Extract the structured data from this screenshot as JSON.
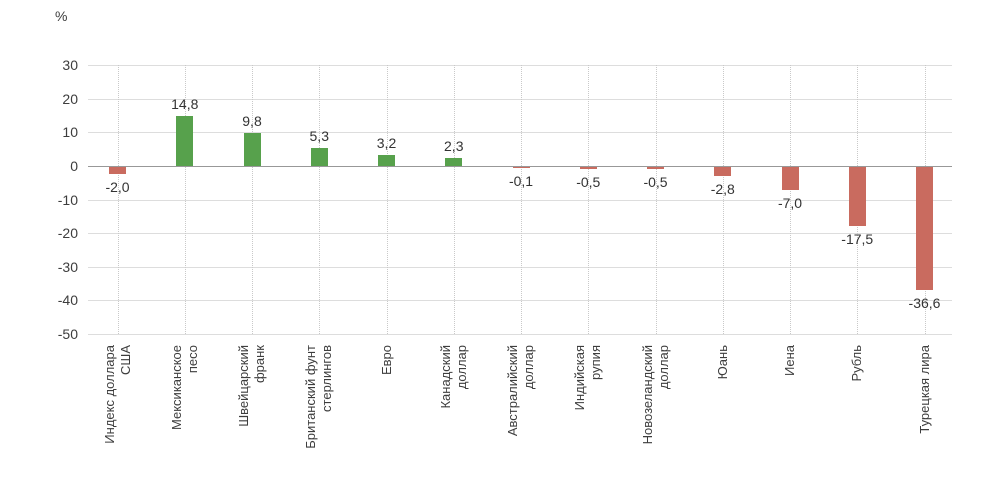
{
  "chart_data": {
    "type": "bar",
    "title": "",
    "unit_label": "%",
    "categories": [
      "Индекс доллара\nСША",
      "Мексиканское\nпесо",
      "Швейцарский\nфранк",
      "Британский фунт\nстерлингов",
      "Евро",
      "Канадский\nдоллар",
      "Австралийский\nдоллар",
      "Индийская\nрупия",
      "Новозеландский\nдоллар",
      "Юань",
      "Иена",
      "Рубль",
      "Турецкая лира"
    ],
    "values": [
      -2.0,
      14.8,
      9.8,
      5.3,
      3.2,
      2.3,
      -0.1,
      -0.5,
      -0.5,
      -2.8,
      -7.0,
      -17.5,
      -36.6
    ],
    "value_labels": [
      "-2,0",
      "14,8",
      "9,8",
      "5,3",
      "3,2",
      "2,3",
      "-0,1",
      "-0,5",
      "-0,5",
      "-2,8",
      "-7,0",
      "-17,5",
      "-36,6"
    ],
    "yticks": [
      30,
      20,
      10,
      0,
      -10,
      -20,
      -30,
      -40,
      -50
    ],
    "ytick_labels": [
      "30",
      "20",
      "10",
      "0",
      "-10",
      "-20",
      "-30",
      "-40",
      "-50"
    ],
    "ylim": [
      -50,
      30
    ],
    "xlabel": "",
    "ylabel": "%",
    "grid": true,
    "legend": "none",
    "positive_color": "#57a14c",
    "negative_color": "#c96b5f"
  }
}
